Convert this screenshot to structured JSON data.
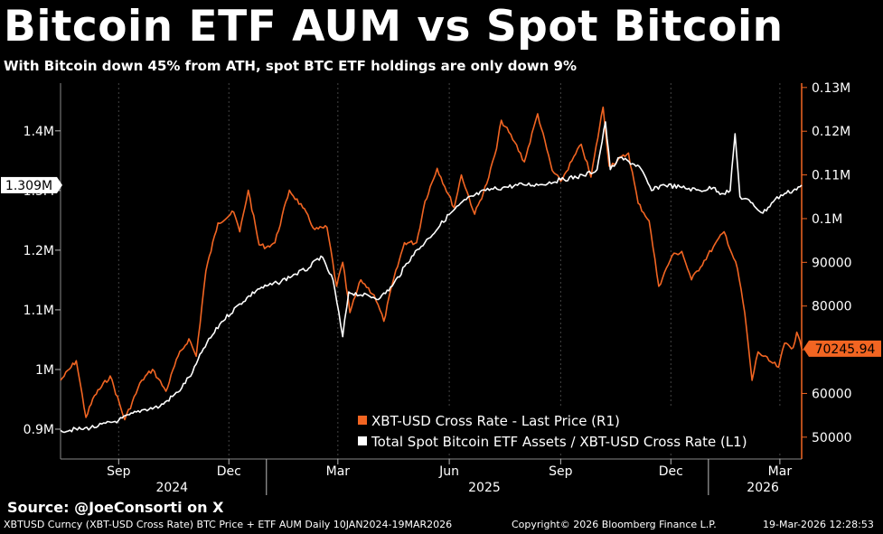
{
  "header": {
    "title": "Bitcoin ETF AUM vs Spot Bitcoin",
    "subtitle": "With Bitcoin down 45% from ATH, spot BTC ETF holdings are only down 9%"
  },
  "source": "Source: @JoeConsorti on X",
  "footer": {
    "left": "XBTUSD Curncy (XBT-USD Cross Rate) BTC Price + ETF AUM Daily 10JAN2024-19MAR2026",
    "center": "Copyright© 2026 Bloomberg Finance L.P.",
    "right": "19-Mar-2026 12:28:53"
  },
  "colors": {
    "background": "#000000",
    "orange": "#f26522",
    "white": "#ffffff",
    "grid": "#555555"
  },
  "chart_data": {
    "type": "line",
    "title": "Bitcoin ETF AUM vs Spot Bitcoin",
    "x_range": [
      "2024-07-15",
      "2026-03-19"
    ],
    "x_ticks": [
      {
        "label": "Sep",
        "date": "2024-09-01"
      },
      {
        "label": "Dec",
        "date": "2024-12-01"
      },
      {
        "label": "Mar",
        "date": "2025-03-01"
      },
      {
        "label": "Jun",
        "date": "2025-06-01"
      },
      {
        "label": "Sep",
        "date": "2025-09-01"
      },
      {
        "label": "Dec",
        "date": "2025-12-01"
      },
      {
        "label": "Mar",
        "date": "2026-03-01"
      }
    ],
    "year_labels": [
      {
        "label": "2024",
        "date": "2024-10-15"
      },
      {
        "label": "2025",
        "date": "2025-06-30"
      },
      {
        "label": "2026",
        "date": "2026-02-15"
      }
    ],
    "year_dividers": [
      "2025-01-01",
      "2026-01-01"
    ],
    "left_axis": {
      "range": [
        850000,
        1480000
      ],
      "ticks": [
        900000,
        1000000,
        1100000,
        1200000,
        1300000,
        1400000
      ],
      "tick_labels": [
        "0.9M",
        "1M",
        "1.1M",
        "1.2M",
        "1.3M",
        "1.4M"
      ],
      "last_value_label": "1.309M",
      "last_value": 1309000
    },
    "right_axis": {
      "range": [
        45000,
        131000
      ],
      "ticks": [
        50000,
        60000,
        70000,
        80000,
        90000,
        100000,
        110000,
        120000,
        130000
      ],
      "tick_labels": [
        "50000",
        "60000",
        "70000",
        "80000",
        "90000",
        "0.1M",
        "0.11M",
        "0.12M",
        "0.13M"
      ],
      "last_value_label": "70245.94",
      "last_value": 70245.94
    },
    "legend": {
      "position": "bottom-right",
      "entries": [
        "XBT-USD Cross Rate - Last Price (R1)",
        "Total Spot Bitcoin ETF Assets / XBT-USD Cross Rate (L1)"
      ]
    },
    "series": [
      {
        "name": "XBT-USD Cross Rate - Last Price (R1)",
        "axis": "right",
        "color": "#f26522",
        "points": [
          [
            "2024-07-15",
            63000
          ],
          [
            "2024-07-28",
            67500
          ],
          [
            "2024-08-05",
            54500
          ],
          [
            "2024-08-12",
            59500
          ],
          [
            "2024-08-25",
            64000
          ],
          [
            "2024-09-06",
            54000
          ],
          [
            "2024-09-20",
            63000
          ],
          [
            "2024-09-29",
            65500
          ],
          [
            "2024-10-10",
            60500
          ],
          [
            "2024-10-20",
            68500
          ],
          [
            "2024-10-29",
            72500
          ],
          [
            "2024-11-04",
            68500
          ],
          [
            "2024-11-12",
            88000
          ],
          [
            "2024-11-22",
            99000
          ],
          [
            "2024-12-05",
            101500
          ],
          [
            "2024-12-10",
            97000
          ],
          [
            "2024-12-17",
            106500
          ],
          [
            "2024-12-26",
            94000
          ],
          [
            "2025-01-01",
            93500
          ],
          [
            "2025-01-08",
            94500
          ],
          [
            "2025-01-20",
            106500
          ],
          [
            "2025-01-31",
            102500
          ],
          [
            "2025-02-10",
            97500
          ],
          [
            "2025-02-20",
            98000
          ],
          [
            "2025-02-28",
            84500
          ],
          [
            "2025-03-05",
            90000
          ],
          [
            "2025-03-11",
            78500
          ],
          [
            "2025-03-20",
            86000
          ],
          [
            "2025-03-31",
            82500
          ],
          [
            "2025-04-08",
            76500
          ],
          [
            "2025-04-15",
            85000
          ],
          [
            "2025-04-25",
            94500
          ],
          [
            "2025-05-05",
            94500
          ],
          [
            "2025-05-12",
            104000
          ],
          [
            "2025-05-22",
            111500
          ],
          [
            "2025-06-05",
            102500
          ],
          [
            "2025-06-11",
            110000
          ],
          [
            "2025-06-22",
            101000
          ],
          [
            "2025-07-02",
            108000
          ],
          [
            "2025-07-10",
            116000
          ],
          [
            "2025-07-14",
            122500
          ],
          [
            "2025-07-25",
            117500
          ],
          [
            "2025-08-02",
            113000
          ],
          [
            "2025-08-13",
            124000
          ],
          [
            "2025-08-25",
            111000
          ],
          [
            "2025-09-01",
            108500
          ],
          [
            "2025-09-18",
            117000
          ],
          [
            "2025-09-26",
            109500
          ],
          [
            "2025-10-06",
            125500
          ],
          [
            "2025-10-11",
            112000
          ],
          [
            "2025-10-27",
            115000
          ],
          [
            "2025-11-04",
            103500
          ],
          [
            "2025-11-13",
            99500
          ],
          [
            "2025-11-21",
            84500
          ],
          [
            "2025-12-02",
            91500
          ],
          [
            "2025-12-10",
            92500
          ],
          [
            "2025-12-18",
            86000
          ],
          [
            "2026-01-05",
            93500
          ],
          [
            "2026-01-14",
            97000
          ],
          [
            "2026-01-25",
            88500
          ],
          [
            "2026-01-31",
            78500
          ],
          [
            "2026-02-06",
            63000
          ],
          [
            "2026-02-11",
            69500
          ],
          [
            "2026-02-20",
            67500
          ],
          [
            "2026-02-28",
            66000
          ],
          [
            "2026-03-05",
            71500
          ],
          [
            "2026-03-12",
            70500
          ],
          [
            "2026-03-15",
            74000
          ],
          [
            "2026-03-19",
            70245.94
          ]
        ]
      },
      {
        "name": "Total Spot Bitcoin ETF Assets / XBT-USD Cross Rate (L1)",
        "axis": "left",
        "color": "#ffffff",
        "points": [
          [
            "2024-07-15",
            898000
          ],
          [
            "2024-08-01",
            900000
          ],
          [
            "2024-08-15",
            905000
          ],
          [
            "2024-09-01",
            915000
          ],
          [
            "2024-09-20",
            932000
          ],
          [
            "2024-10-05",
            938000
          ],
          [
            "2024-10-20",
            962000
          ],
          [
            "2024-11-01",
            995000
          ],
          [
            "2024-11-10",
            1035000
          ],
          [
            "2024-11-25",
            1080000
          ],
          [
            "2024-12-10",
            1110000
          ],
          [
            "2024-12-25",
            1135000
          ],
          [
            "2025-01-10",
            1145000
          ],
          [
            "2025-01-25",
            1160000
          ],
          [
            "2025-02-05",
            1170000
          ],
          [
            "2025-02-15",
            1190000
          ],
          [
            "2025-02-25",
            1150000
          ],
          [
            "2025-03-05",
            1055000
          ],
          [
            "2025-03-10",
            1130000
          ],
          [
            "2025-03-20",
            1125000
          ],
          [
            "2025-04-05",
            1120000
          ],
          [
            "2025-04-15",
            1140000
          ],
          [
            "2025-05-01",
            1190000
          ],
          [
            "2025-05-15",
            1220000
          ],
          [
            "2025-06-01",
            1260000
          ],
          [
            "2025-06-15",
            1285000
          ],
          [
            "2025-07-01",
            1300000
          ],
          [
            "2025-07-15",
            1305000
          ],
          [
            "2025-08-01",
            1310000
          ],
          [
            "2025-08-15",
            1310000
          ],
          [
            "2025-09-01",
            1318000
          ],
          [
            "2025-09-20",
            1325000
          ],
          [
            "2025-10-01",
            1335000
          ],
          [
            "2025-10-08",
            1415000
          ],
          [
            "2025-10-12",
            1335000
          ],
          [
            "2025-10-20",
            1355000
          ],
          [
            "2025-11-05",
            1340000
          ],
          [
            "2025-11-15",
            1300000
          ],
          [
            "2025-11-25",
            1310000
          ],
          [
            "2025-12-10",
            1305000
          ],
          [
            "2025-12-25",
            1300000
          ],
          [
            "2026-01-05",
            1305000
          ],
          [
            "2026-01-12",
            1295000
          ],
          [
            "2026-01-19",
            1300000
          ],
          [
            "2026-01-23",
            1395000
          ],
          [
            "2026-01-27",
            1290000
          ],
          [
            "2026-02-05",
            1280000
          ],
          [
            "2026-02-15",
            1262000
          ],
          [
            "2026-02-25",
            1285000
          ],
          [
            "2026-03-05",
            1295000
          ],
          [
            "2026-03-12",
            1300000
          ],
          [
            "2026-03-19",
            1309000
          ]
        ]
      }
    ]
  }
}
